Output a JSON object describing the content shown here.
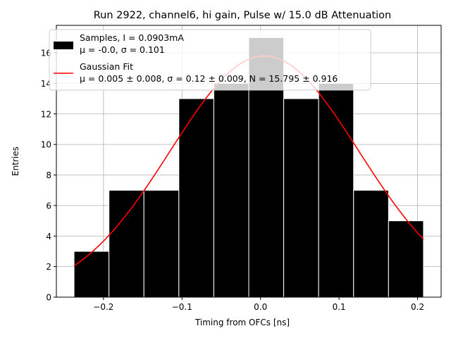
{
  "chart_data": {
    "type": "bar",
    "title": "Run 2922, channel6, hi gain, Pulse w/ 15.0 dB Attenuation",
    "xlabel": "Timing from OFCs [ns]",
    "ylabel": "Entries",
    "xlim": [
      -0.26,
      0.23
    ],
    "ylim": [
      0,
      17.8
    ],
    "xticks": [
      -0.2,
      -0.1,
      0.0,
      0.1,
      0.2
    ],
    "xtick_labels": [
      "−0.2",
      "−0.1",
      "0.0",
      "0.1",
      "0.2"
    ],
    "yticks": [
      0,
      2,
      4,
      6,
      8,
      10,
      12,
      14,
      16
    ],
    "ytick_labels": [
      "0",
      "2",
      "4",
      "6",
      "8",
      "10",
      "12",
      "14",
      "16"
    ],
    "grid": true,
    "legend_position": "top-left",
    "histogram": {
      "name": "Samples, I = 0.0903mA",
      "stats": "μ = -0.0, σ = 0.101",
      "color": "#000000",
      "bin_edges": [
        -0.2375,
        -0.193,
        -0.1485,
        -0.104,
        -0.0595,
        -0.015,
        0.0295,
        0.074,
        0.1185,
        0.163,
        0.2075
      ],
      "counts": [
        3,
        7,
        7,
        13,
        14,
        17,
        13,
        14,
        7,
        5
      ]
    },
    "fit": {
      "name": "Gaussian Fit",
      "stats": "μ = 0.005 ± 0.008, σ = 0.12 ± 0.009, N = 15.795 ± 0.916",
      "color": "#ff0000",
      "mu": 0.005,
      "sigma": 0.12,
      "N": 15.795,
      "x_range": [
        -0.2375,
        0.2075
      ]
    }
  }
}
